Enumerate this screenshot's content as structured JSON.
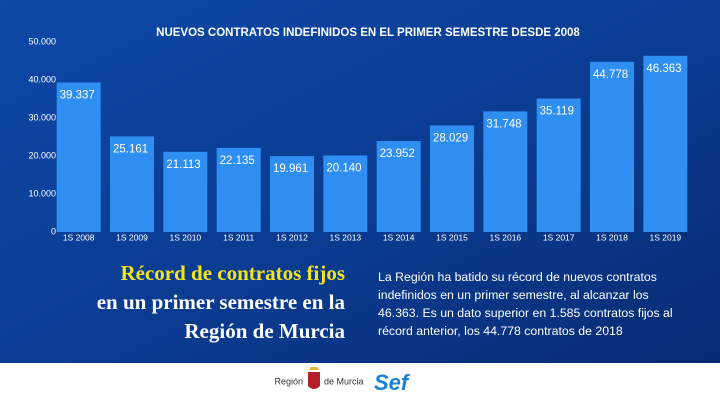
{
  "chart_data": {
    "type": "bar",
    "title": "NUEVOS CONTRATOS INDEFINIDOS EN EL PRIMER SEMESTRE DESDE 2008",
    "categories": [
      "1S 2008",
      "1S 2009",
      "1S 2010",
      "1S 2011",
      "1S 2012",
      "1S 2013",
      "1S 2014",
      "1S 2015",
      "1S 2016",
      "1S 2017",
      "1S 2018",
      "1S 2019"
    ],
    "values": [
      39337,
      25161,
      21113,
      22135,
      19961,
      20140,
      23952,
      28029,
      31748,
      35119,
      44778,
      46363
    ],
    "value_labels": [
      "39.337",
      "25.161",
      "21.113",
      "22.135",
      "19.961",
      "20.140",
      "23.952",
      "28.029",
      "31.748",
      "35.119",
      "44.778",
      "46.363"
    ],
    "color": "#2f8ef2",
    "ylim": [
      0,
      50000
    ],
    "yticks": [
      0,
      {
        "value": 10000,
        "label": "10.000"
      },
      {
        "value": 20000,
        "label": "20.000"
      },
      {
        "value": 30000,
        "label": "30.000"
      },
      {
        "value": 40000,
        "label": "40.000"
      },
      {
        "value": 50000,
        "label": "50.000"
      }
    ],
    "grid": false
  },
  "headline": [
    "Récord de contratos fijos",
    "en un primer semestre en la",
    "Región de Murcia"
  ],
  "body": "La Región ha batido su récord de nuevos contratos indefinidos en un primer semestre, al alcanzar los 46.363. Es un dato superior en 1.585 contratos fijos al récord anterior, los 44.778 contratos de 2018",
  "footer": {
    "region_left": "Región",
    "region_right": "de Murcia",
    "brand": "Sef"
  }
}
